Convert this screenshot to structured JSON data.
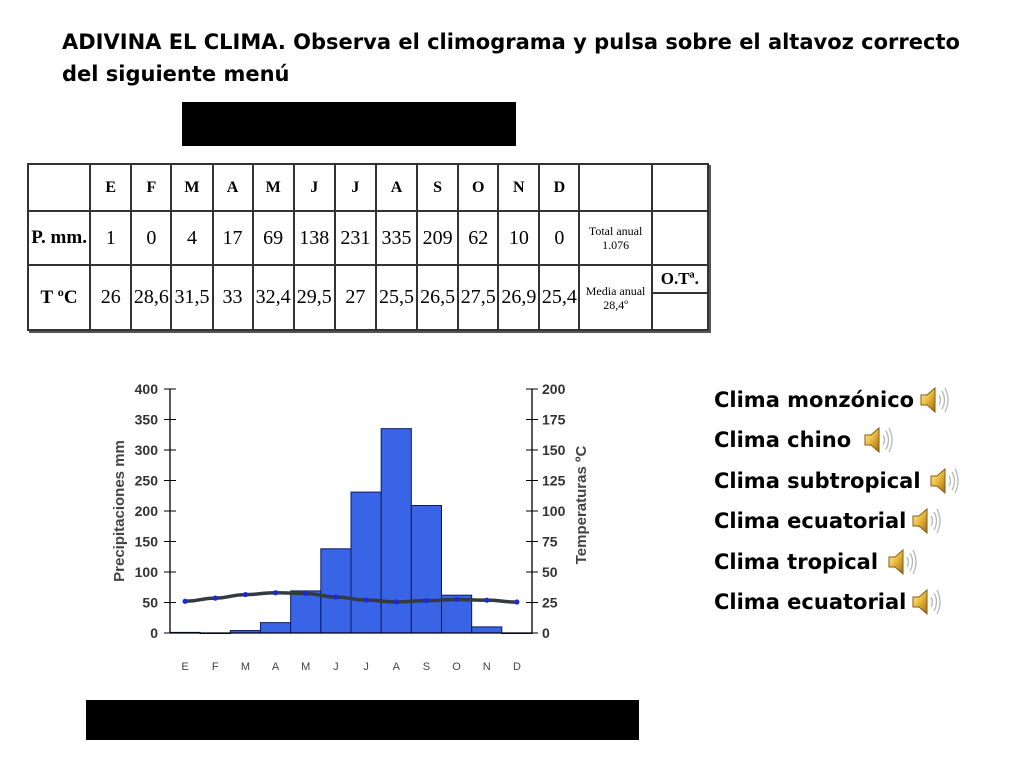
{
  "instruction": "ADIVINA EL CLIMA. Observa el climograma y pulsa sobre el altavoz correcto del siguiente menú",
  "table": {
    "months": [
      "E",
      "F",
      "M",
      "A",
      "M",
      "J",
      "J",
      "A",
      "S",
      "O",
      "N",
      "D"
    ],
    "prec_label": "P. mm.",
    "prec": [
      "1",
      "0",
      "4",
      "17",
      "69",
      "138",
      "231",
      "335",
      "209",
      "62",
      "10",
      "0"
    ],
    "total_label": "Total anual",
    "total_value": "1.076",
    "temp_label": "T ºC",
    "temp": [
      "26",
      "28,6",
      "31,5",
      "33",
      "32,4",
      "29,5",
      "27",
      "25,5",
      "26,5",
      "27,5",
      "26,9",
      "25,4"
    ],
    "media_label": "Media anual",
    "media_value": "28,4º",
    "ot_label": "O.Tª."
  },
  "chart_data": {
    "type": "bar",
    "categories": [
      "E",
      "F",
      "M",
      "A",
      "M",
      "J",
      "J",
      "A",
      "S",
      "O",
      "N",
      "D"
    ],
    "series": [
      {
        "values": [
          1,
          0,
          4,
          17,
          69,
          138,
          231,
          335,
          209,
          62,
          10,
          0
        ],
        "color": "#3a64e6",
        "axis": "left"
      },
      {
        "values": [
          26,
          28.6,
          31.5,
          33,
          32.4,
          29.5,
          27,
          25.5,
          26.5,
          27.5,
          26.9,
          25.4
        ],
        "type": "line",
        "color": "#333a40",
        "axis": "right"
      }
    ],
    "ylabel": "Precipitaciones mm",
    "y2label": "Temperaturas ºC",
    "ylim": [
      0,
      400
    ],
    "y2lim": [
      0,
      200
    ],
    "yticks": [
      "0",
      "50",
      "100",
      "150",
      "200",
      "250",
      "300",
      "350",
      "400"
    ],
    "y2ticks": [
      "0",
      "25",
      "50",
      "75",
      "100",
      "125",
      "150",
      "175",
      "200"
    ],
    "grid": false
  },
  "options": [
    {
      "label": "Clima monzónico",
      "icon": "speaker-icon"
    },
    {
      "label": "Clima chino",
      "icon": "speaker-icon"
    },
    {
      "label": "Clima subtropical",
      "icon": "speaker-icon"
    },
    {
      "label": "Clima ecuatorial",
      "icon": "speaker-icon"
    },
    {
      "label": "Clima tropical",
      "icon": "speaker-icon"
    },
    {
      "label": "Clima ecuatorial",
      "icon": "speaker-icon"
    }
  ]
}
